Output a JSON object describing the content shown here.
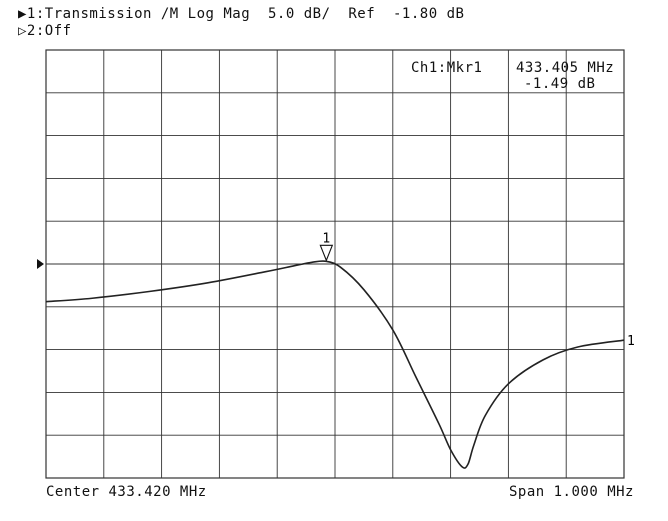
{
  "header": {
    "line1": "▶1:Transmission /M Log Mag  5.0 dB/  Ref  -1.80 dB",
    "line2": "▷2:Off"
  },
  "footer": {
    "center": "Center 433.420 MHz",
    "span": "Span 1.000 MHz"
  },
  "marker": {
    "label": "Ch1:Mkr1",
    "freq": "433.405 MHz",
    "value": "-1.49 dB",
    "number": "1",
    "end_number": "1"
  },
  "colors": {
    "trace": "#222222",
    "grid": "#333333"
  },
  "chart_data": {
    "type": "line",
    "title": "",
    "xlabel": "",
    "ylabel": "",
    "xlim": [
      432.92,
      433.92
    ],
    "ylim": [
      -26.8,
      23.2
    ],
    "reference_level": -1.8,
    "scale_per_div": 5.0,
    "grid": true,
    "series": [
      {
        "name": "",
        "x": [
          432.92,
          433.0,
          433.1,
          433.2,
          433.3,
          433.35,
          433.38,
          433.405,
          433.43,
          433.47,
          433.52,
          433.56,
          433.6,
          433.62,
          433.64,
          433.65,
          433.66,
          433.68,
          433.72,
          433.78,
          433.84,
          433.92
        ],
        "y": [
          -6.2,
          -5.8,
          -5.0,
          -4.0,
          -2.7,
          -2.0,
          -1.6,
          -1.49,
          -2.2,
          -4.8,
          -9.5,
          -15.0,
          -20.5,
          -23.5,
          -25.5,
          -25.2,
          -23.0,
          -19.5,
          -15.8,
          -13.0,
          -11.5,
          -10.7
        ]
      }
    ]
  }
}
